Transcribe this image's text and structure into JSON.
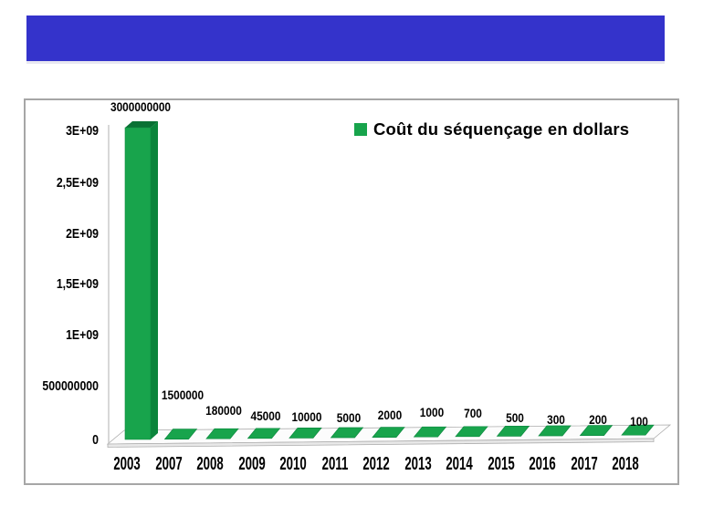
{
  "banner": {
    "text": "",
    "color": "#3433CB"
  },
  "chart_data": {
    "type": "bar",
    "style": "3d-column",
    "title": "",
    "legend": "Coût du séquençage en dollars",
    "legend_position": "top-center-right",
    "grid": "off",
    "categories": [
      "2003",
      "2007",
      "2008",
      "2009",
      "2010",
      "2011",
      "2012",
      "2013",
      "2014",
      "2015",
      "2016",
      "2017",
      "2018"
    ],
    "values": [
      3000000000,
      1500000,
      180000,
      45000,
      10000,
      5000,
      2000,
      1000,
      700,
      500,
      300,
      200,
      100
    ],
    "value_labels": [
      "3000000000",
      "1500000",
      "180000",
      "45000",
      "10000",
      "5000",
      "2000",
      "1000",
      "700",
      "500",
      "300",
      "200",
      "100"
    ],
    "xlabel": "",
    "ylabel": "",
    "y_ticks": [
      "3E+09",
      "2,5E+09",
      "2E+09",
      "1,5E+09",
      "1E+09",
      "500000000",
      "0"
    ],
    "ylim": [
      0,
      3000000000
    ],
    "series_color": "#18A44C",
    "bar_side_color": "#0B843B",
    "bar_top_color": "#097134",
    "axis_color": "#C4C4C4",
    "floor_border_color": "#ADADAD"
  }
}
